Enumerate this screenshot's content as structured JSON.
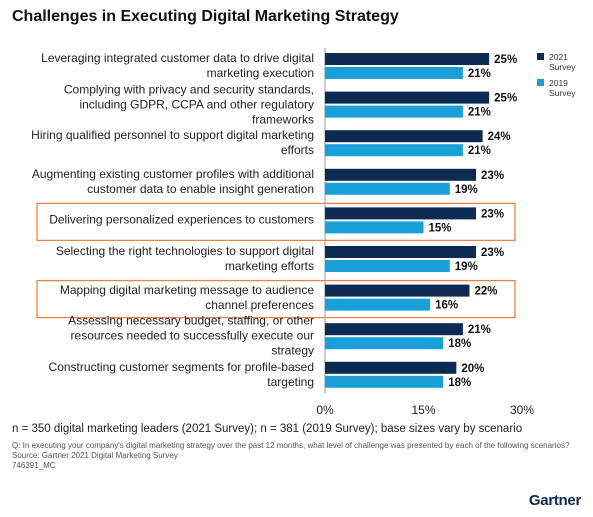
{
  "chart_data": {
    "type": "hbar",
    "title": "Challenges in Executing Digital Marketing Strategy",
    "categories": [
      "Leveraging integrated customer data to drive digital marketing execution",
      "Complying with privacy and security standards, including GDPR, CCPA and other regulatory frameworks",
      "Hiring qualified personnel to support digital marketing efforts",
      "Augmenting existing customer profiles with additional customer data to enable insight generation",
      "Delivering personalized experiences to customers",
      "Selecting the right technologies to support digital marketing efforts",
      "Mapping digital marketing message to audience channel preferences",
      "Assessing necessary budget, staffing, or other resources needed to successfully execute our strategy",
      "Constructing customer segments for profile-based targeting"
    ],
    "series": [
      {
        "name": "2021 Survey",
        "color": "#0d2a52",
        "values": [
          25,
          25,
          24,
          23,
          23,
          23,
          22,
          21,
          20
        ],
        "value_labels": [
          "25%",
          "25%",
          "24%",
          "23%",
          "23%",
          "23%",
          "22%",
          "21%",
          "20%"
        ]
      },
      {
        "name": "2019 Survey",
        "color": "#1aa0d8",
        "values": [
          21,
          21,
          21,
          19,
          15,
          19,
          16,
          18,
          18
        ],
        "value_labels": [
          "21%",
          "21%",
          "21%",
          "19%",
          "15%",
          "19%",
          "16%",
          "18%",
          "18%"
        ]
      }
    ],
    "xlim": [
      0,
      30
    ],
    "xticks": [
      {
        "value": 0,
        "label": "0%"
      },
      {
        "value": 15,
        "label": "15%"
      },
      {
        "value": 30,
        "label": "30%"
      }
    ],
    "highlighted_categories": [
      4,
      6
    ],
    "highlight_color": "#e8834a",
    "legend": "top-right",
    "notes": [
      "n = 350 digital marketing leaders (2021 Survey); n = 381 (2019 Survey); base sizes vary by scenario",
      "Q: In executing your company's digital marketing strategy over the past 12 months, what level of challenge was presented by each of the following scenarios?",
      "Source: Gartner 2021 Digital Marketing Survey",
      "746391_MC"
    ],
    "logo": "Gartner"
  }
}
